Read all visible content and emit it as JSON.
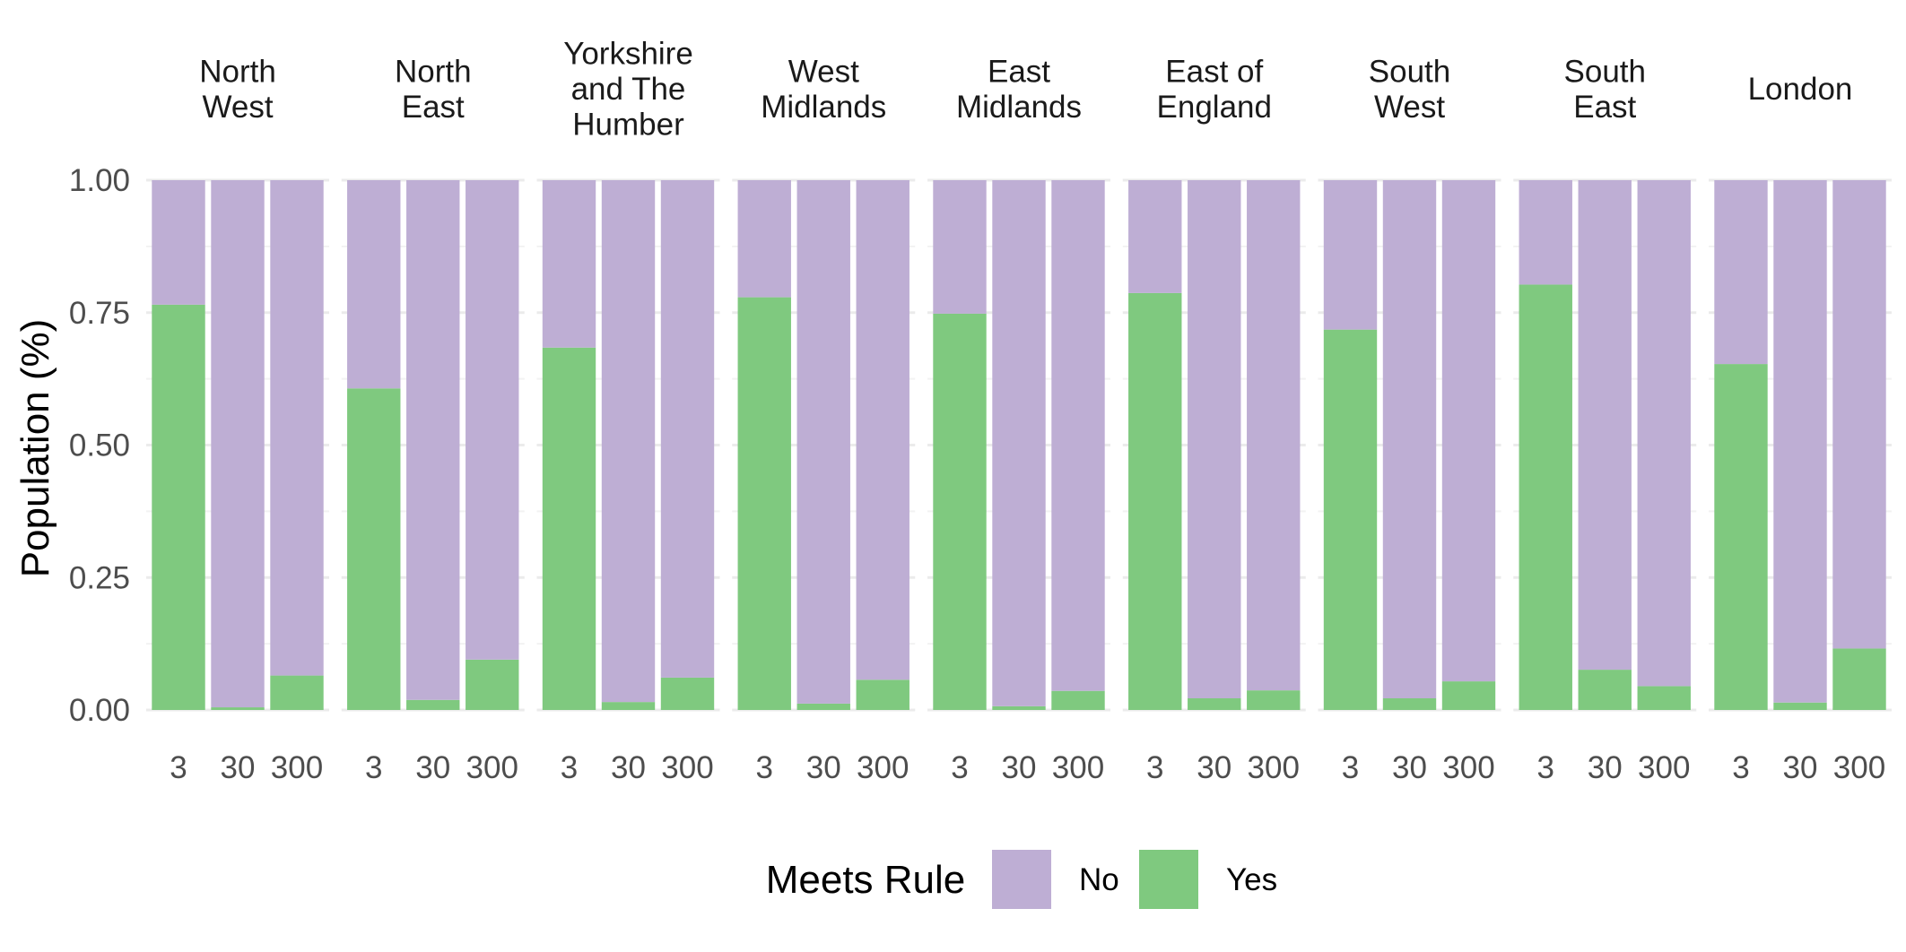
{
  "chart_data": {
    "type": "bar",
    "stacked": true,
    "facet_by": "region",
    "regions": [
      {
        "name": "North West",
        "lines": [
          "North",
          "West"
        ]
      },
      {
        "name": "North East",
        "lines": [
          "North",
          "East"
        ]
      },
      {
        "name": "Yorkshire and The Humber",
        "lines": [
          "Yorkshire",
          "and The",
          "Humber"
        ]
      },
      {
        "name": "West Midlands",
        "lines": [
          "West",
          "Midlands"
        ]
      },
      {
        "name": "East Midlands",
        "lines": [
          "East",
          "Midlands"
        ]
      },
      {
        "name": "East of England",
        "lines": [
          "East of",
          "England"
        ]
      },
      {
        "name": "South West",
        "lines": [
          "South",
          "West"
        ]
      },
      {
        "name": "South East",
        "lines": [
          "South",
          "East"
        ]
      },
      {
        "name": "London",
        "lines": [
          "London"
        ]
      }
    ],
    "categories": [
      "3",
      "30",
      "300"
    ],
    "series": [
      {
        "name": "Yes",
        "color": "#7fc97f",
        "values": [
          [
            0.765,
            0.005,
            0.065
          ],
          [
            0.607,
            0.019,
            0.095
          ],
          [
            0.684,
            0.015,
            0.061
          ],
          [
            0.779,
            0.012,
            0.057
          ],
          [
            0.748,
            0.007,
            0.036
          ],
          [
            0.787,
            0.022,
            0.037
          ],
          [
            0.718,
            0.022,
            0.054
          ],
          [
            0.803,
            0.076,
            0.045
          ],
          [
            0.653,
            0.014,
            0.116
          ]
        ]
      },
      {
        "name": "No",
        "color": "#beaed4",
        "values": [
          [
            0.235,
            0.995,
            0.935
          ],
          [
            0.393,
            0.981,
            0.905
          ],
          [
            0.316,
            0.985,
            0.939
          ],
          [
            0.221,
            0.988,
            0.943
          ],
          [
            0.252,
            0.993,
            0.964
          ],
          [
            0.213,
            0.978,
            0.963
          ],
          [
            0.282,
            0.978,
            0.946
          ],
          [
            0.197,
            0.924,
            0.955
          ],
          [
            0.347,
            0.986,
            0.884
          ]
        ]
      }
    ],
    "ylabel": "Population (%)",
    "xlabel": "",
    "ylim": [
      0,
      1
    ],
    "yticks": [
      "0.00",
      "0.25",
      "0.50",
      "0.75",
      "1.00"
    ],
    "grid": true,
    "legend": {
      "title": "Meets Rule",
      "position": "bottom",
      "entries": [
        {
          "label": "No",
          "color": "#beaed4"
        },
        {
          "label": "Yes",
          "color": "#7fc97f"
        }
      ]
    }
  }
}
